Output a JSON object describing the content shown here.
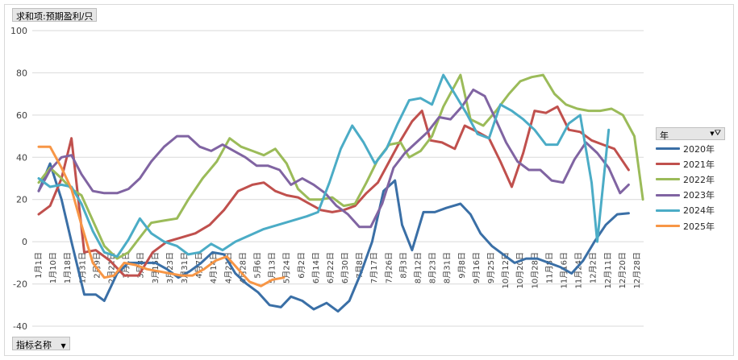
{
  "chart_data": {
    "type": "line",
    "title": "",
    "value_field": "求和项:预期盈利/只",
    "row_field": "指标名称",
    "legend_title": "年",
    "ylim": [
      -40,
      100
    ],
    "yticks": [
      -40,
      -20,
      0,
      20,
      40,
      60,
      80,
      100
    ],
    "grid": true,
    "legend_position": "right",
    "categories": [
      "1月1日",
      "1月10日",
      "1月18日",
      "1月31日",
      "2月9日",
      "2月21日",
      "3月1日",
      "3月8日",
      "3月15日",
      "3月23日",
      "3月31日",
      "4月7日",
      "4月14日",
      "4月21日",
      "4月28日",
      "5月6日",
      "5月13日",
      "5月24日",
      "6月2日",
      "6月14日",
      "6月22日",
      "6月30日",
      "7月8日",
      "7月17日",
      "7月26日",
      "8月3日",
      "8月12日",
      "8月23日",
      "8月31日",
      "9月8日",
      "9月16日",
      "9月25日",
      "10月12日",
      "10月20日",
      "10月28日",
      "11月8日",
      "11月16日",
      "11月24日",
      "12月2日",
      "12月11日",
      "12月20日",
      "12月28日"
    ],
    "series": [
      {
        "name": "2020年",
        "color": "#3a6fa6",
        "points": [
          [
            0,
            24
          ],
          [
            0.8,
            37
          ],
          [
            1.6,
            20
          ],
          [
            2.3,
            0
          ],
          [
            3.2,
            -25
          ],
          [
            4,
            -25
          ],
          [
            4.6,
            -28
          ],
          [
            5.5,
            -15
          ],
          [
            6.3,
            -10
          ],
          [
            7.2,
            -10
          ],
          [
            8.2,
            -10
          ],
          [
            9,
            -13
          ],
          [
            9.8,
            -17
          ],
          [
            10.6,
            -14
          ],
          [
            11.4,
            -10
          ],
          [
            12.2,
            -5
          ],
          [
            13,
            -6
          ],
          [
            13.8,
            -15
          ],
          [
            14.6,
            -20
          ],
          [
            15.4,
            -24
          ],
          [
            16.2,
            -30
          ],
          [
            17,
            -31
          ],
          [
            17.7,
            -26
          ],
          [
            18.5,
            -28
          ],
          [
            19.3,
            -32
          ],
          [
            20.2,
            -29
          ],
          [
            21,
            -33
          ],
          [
            21.8,
            -28
          ],
          [
            22.6,
            -15
          ],
          [
            23.4,
            0
          ],
          [
            24.2,
            24
          ],
          [
            25,
            29
          ],
          [
            25.5,
            8
          ],
          [
            26.2,
            -4
          ],
          [
            27,
            14
          ],
          [
            27.8,
            14
          ],
          [
            28.6,
            16
          ],
          [
            29.6,
            18
          ],
          [
            30.3,
            13
          ],
          [
            31,
            4
          ],
          [
            31.8,
            -2
          ],
          [
            32.6,
            -6
          ],
          [
            33.4,
            -10
          ],
          [
            34.2,
            -8
          ],
          [
            35,
            -8
          ],
          [
            35.8,
            -10
          ],
          [
            36.6,
            -12
          ],
          [
            37.4,
            -15
          ],
          [
            38.2,
            -9
          ],
          [
            39,
            0
          ],
          [
            39.8,
            8
          ],
          [
            40.6,
            13
          ],
          [
            41.4,
            13.5
          ]
        ]
      },
      {
        "name": "2021年",
        "color": "#c0504d",
        "points": [
          [
            0,
            13
          ],
          [
            0.8,
            17
          ],
          [
            1.6,
            30
          ],
          [
            2.3,
            49
          ],
          [
            3.2,
            -5
          ],
          [
            4,
            -4
          ],
          [
            5,
            -9
          ],
          [
            6,
            -16
          ],
          [
            7,
            -16
          ],
          [
            8,
            -5
          ],
          [
            9,
            0
          ],
          [
            10,
            2
          ],
          [
            11,
            4
          ],
          [
            12,
            8
          ],
          [
            13,
            15
          ],
          [
            14,
            24
          ],
          [
            15,
            27
          ],
          [
            15.8,
            28
          ],
          [
            16.6,
            24
          ],
          [
            17.4,
            22
          ],
          [
            18.2,
            21
          ],
          [
            19,
            18
          ],
          [
            19.8,
            15
          ],
          [
            20.6,
            14
          ],
          [
            21.4,
            15
          ],
          [
            22.2,
            17
          ],
          [
            23,
            23
          ],
          [
            23.8,
            28
          ],
          [
            24.6,
            38
          ],
          [
            25.4,
            48
          ],
          [
            26.2,
            57
          ],
          [
            26.9,
            62
          ],
          [
            27.5,
            48
          ],
          [
            28.3,
            47
          ],
          [
            29.2,
            44
          ],
          [
            29.9,
            55
          ],
          [
            30.8,
            52
          ],
          [
            31.6,
            49
          ],
          [
            32.4,
            38
          ],
          [
            33.2,
            26
          ],
          [
            34,
            42
          ],
          [
            34.8,
            62
          ],
          [
            35.6,
            61
          ],
          [
            36.4,
            64
          ],
          [
            37.2,
            53
          ],
          [
            38,
            52
          ],
          [
            38.8,
            48
          ],
          [
            39.6,
            46
          ],
          [
            40.4,
            44
          ],
          [
            41.4,
            34
          ]
        ]
      },
      {
        "name": "2022年",
        "color": "#9bbb59",
        "points": [
          [
            0,
            28
          ],
          [
            0.8,
            35
          ],
          [
            1.6,
            30
          ],
          [
            2.3,
            25
          ],
          [
            3,
            22
          ],
          [
            3.8,
            10
          ],
          [
            4.6,
            -2
          ],
          [
            5.5,
            -8
          ],
          [
            6.3,
            -5
          ],
          [
            7.1,
            2
          ],
          [
            7.9,
            9
          ],
          [
            8.8,
            10
          ],
          [
            9.7,
            11
          ],
          [
            10.5,
            20
          ],
          [
            11.5,
            30
          ],
          [
            12.5,
            38
          ],
          [
            13.4,
            49
          ],
          [
            14.2,
            45
          ],
          [
            15,
            43
          ],
          [
            15.8,
            41
          ],
          [
            16.6,
            44
          ],
          [
            17.4,
            37
          ],
          [
            18.2,
            25
          ],
          [
            19,
            20
          ],
          [
            19.8,
            20
          ],
          [
            20.6,
            21
          ],
          [
            21.4,
            17
          ],
          [
            22.2,
            18
          ],
          [
            23,
            28
          ],
          [
            23.8,
            39
          ],
          [
            24.6,
            46
          ],
          [
            25.4,
            47
          ],
          [
            26,
            40
          ],
          [
            26.8,
            43
          ],
          [
            27.6,
            50
          ],
          [
            28.4,
            64
          ],
          [
            29.6,
            79
          ],
          [
            30.3,
            58
          ],
          [
            31.2,
            55
          ],
          [
            32.1,
            62
          ],
          [
            33,
            70
          ],
          [
            33.8,
            76
          ],
          [
            34.6,
            78
          ],
          [
            35.4,
            79
          ],
          [
            36.2,
            70
          ],
          [
            37,
            65
          ],
          [
            37.8,
            63
          ],
          [
            38.6,
            62
          ],
          [
            39.4,
            62
          ],
          [
            40.2,
            63
          ],
          [
            41,
            60
          ],
          [
            41.8,
            50
          ],
          [
            42.4,
            20
          ]
        ]
      },
      {
        "name": "2023年",
        "color": "#8064a2",
        "points": [
          [
            0,
            24
          ],
          [
            0.8,
            34
          ],
          [
            1.6,
            40
          ],
          [
            2.3,
            41
          ],
          [
            3,
            32
          ],
          [
            3.8,
            24
          ],
          [
            4.6,
            23
          ],
          [
            5.5,
            23
          ],
          [
            6.3,
            25
          ],
          [
            7.1,
            30
          ],
          [
            7.9,
            38
          ],
          [
            8.8,
            45
          ],
          [
            9.7,
            50
          ],
          [
            10.5,
            50
          ],
          [
            11.3,
            45
          ],
          [
            12.1,
            43
          ],
          [
            12.9,
            46
          ],
          [
            13.7,
            43
          ],
          [
            14.5,
            40
          ],
          [
            15.3,
            36
          ],
          [
            16.1,
            36
          ],
          [
            16.9,
            34
          ],
          [
            17.7,
            27
          ],
          [
            18.5,
            30
          ],
          [
            19.3,
            27
          ],
          [
            20.1,
            23
          ],
          [
            20.9,
            17
          ],
          [
            21.7,
            13
          ],
          [
            22.5,
            7
          ],
          [
            23.3,
            7
          ],
          [
            24.1,
            18
          ],
          [
            24.9,
            35
          ],
          [
            25.7,
            42
          ],
          [
            26.5,
            47
          ],
          [
            27.3,
            52
          ],
          [
            28.1,
            59
          ],
          [
            28.9,
            58
          ],
          [
            29.7,
            64
          ],
          [
            30.5,
            72
          ],
          [
            31.3,
            69
          ],
          [
            32,
            59
          ],
          [
            32.8,
            47
          ],
          [
            33.6,
            38
          ],
          [
            34.4,
            34
          ],
          [
            35.2,
            34
          ],
          [
            36,
            29
          ],
          [
            36.8,
            28
          ],
          [
            37.6,
            39
          ],
          [
            38.4,
            47
          ],
          [
            39.2,
            42
          ],
          [
            40,
            35
          ],
          [
            40.8,
            23
          ],
          [
            41.4,
            27
          ]
        ]
      },
      {
        "name": "2024年",
        "color": "#4bacc6",
        "points": [
          [
            0,
            30
          ],
          [
            0.8,
            26
          ],
          [
            1.6,
            27
          ],
          [
            2.3,
            26
          ],
          [
            3,
            18
          ],
          [
            3.8,
            5
          ],
          [
            4.6,
            -5
          ],
          [
            5.5,
            -7
          ],
          [
            6.3,
            1
          ],
          [
            7.1,
            11
          ],
          [
            7.9,
            4
          ],
          [
            8.8,
            0
          ],
          [
            9.7,
            -2
          ],
          [
            10.5,
            -6
          ],
          [
            11.3,
            -5
          ],
          [
            12.1,
            -1
          ],
          [
            12.9,
            -4
          ],
          [
            13.8,
            0
          ],
          [
            14.8,
            3
          ],
          [
            15.8,
            6
          ],
          [
            16.8,
            8
          ],
          [
            17.8,
            10
          ],
          [
            18.8,
            12
          ],
          [
            19.6,
            14
          ],
          [
            20.4,
            28
          ],
          [
            21.2,
            44
          ],
          [
            22,
            55
          ],
          [
            22.8,
            47
          ],
          [
            23.6,
            37
          ],
          [
            24.4,
            44
          ],
          [
            25.2,
            56
          ],
          [
            26,
            67
          ],
          [
            26.8,
            68
          ],
          [
            27.6,
            65
          ],
          [
            28.4,
            79
          ],
          [
            29.2,
            70
          ],
          [
            30,
            61
          ],
          [
            30.8,
            51
          ],
          [
            31.6,
            49
          ],
          [
            32.4,
            65
          ],
          [
            33.2,
            62
          ],
          [
            34,
            58
          ],
          [
            34.8,
            53
          ],
          [
            35.6,
            46
          ],
          [
            36.4,
            46
          ],
          [
            37.2,
            56
          ],
          [
            38,
            60
          ],
          [
            38.8,
            28
          ],
          [
            39.2,
            0
          ],
          [
            40,
            53
          ]
        ]
      },
      {
        "name": "2025年",
        "color": "#f79646",
        "points": [
          [
            0,
            45
          ],
          [
            0.8,
            45
          ],
          [
            1.6,
            35
          ],
          [
            2.3,
            25
          ],
          [
            3,
            8
          ],
          [
            3.8,
            -10
          ],
          [
            4.6,
            -17
          ],
          [
            5.3,
            -16
          ],
          [
            6,
            -10
          ],
          [
            6.8,
            -11
          ],
          [
            7.6,
            -13
          ],
          [
            8.4,
            -14
          ],
          [
            9.2,
            -15
          ],
          [
            10,
            -16
          ],
          [
            10.8,
            -16
          ],
          [
            11.6,
            -13
          ],
          [
            12.4,
            -9
          ],
          [
            13.2,
            -7
          ],
          [
            14,
            -13
          ],
          [
            14.8,
            -19
          ],
          [
            15.6,
            -21
          ],
          [
            16.4,
            -18
          ],
          [
            17.2,
            -17
          ]
        ]
      }
    ]
  }
}
